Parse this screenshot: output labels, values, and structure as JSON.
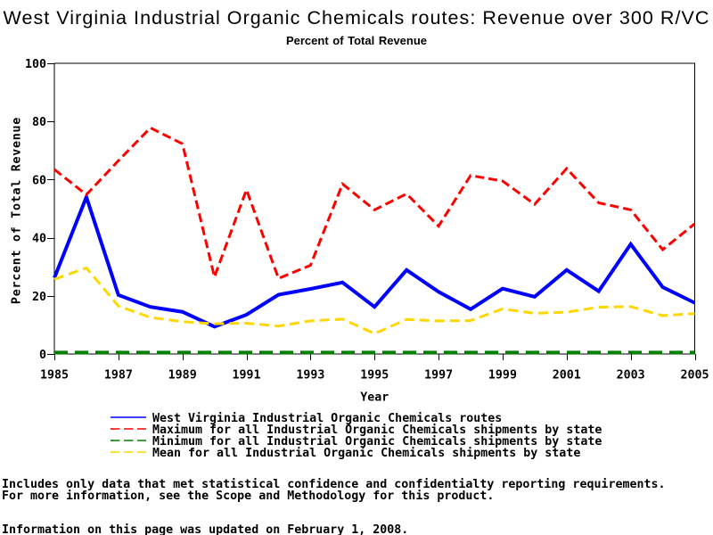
{
  "chart_data": {
    "type": "line",
    "title": "West Virginia Industrial Organic Chemicals routes: Revenue over 300 R/VC",
    "subtitle": "Percent of Total Revenue",
    "xlabel": "Year",
    "ylabel": "Percent of Total Revenue",
    "xlim": [
      1985,
      2005
    ],
    "ylim": [
      0,
      100
    ],
    "x_tick_labels": [
      1985,
      1987,
      1989,
      1991,
      1993,
      1995,
      1997,
      1999,
      2001,
      2003,
      2005
    ],
    "y_tick_labels": [
      0,
      20,
      40,
      60,
      80,
      100
    ],
    "grid": false,
    "legend_position": "bottom",
    "x": [
      1985,
      1986,
      1987,
      1988,
      1989,
      1990,
      1991,
      1992,
      1993,
      1994,
      1995,
      1996,
      1997,
      1998,
      1999,
      2000,
      2001,
      2002,
      2003,
      2004,
      2005
    ],
    "series": [
      {
        "name": "West Virginia Industrial Organic Chemicals routes",
        "color": "#0000ff",
        "line_style": "solid",
        "line_width": 4,
        "values": [
          26.2,
          54.0,
          20.3,
          16.2,
          14.5,
          9.4,
          13.5,
          20.4,
          22.4,
          24.6,
          16.2,
          28.9,
          21.4,
          15.4,
          22.5,
          19.7,
          28.9,
          21.6,
          37.8,
          23.0,
          17.6
        ]
      },
      {
        "name": "Maximum for all Industrial Organic Chemicals shipments by state",
        "color": "#ff0000",
        "line_style": "dashed",
        "line_width": 3,
        "values": [
          63.5,
          54.8,
          66.5,
          77.8,
          72.3,
          26.5,
          56.5,
          26.0,
          30.5,
          58.5,
          49.6,
          55.1,
          44.0,
          61.4,
          59.5,
          51.5,
          63.8,
          52.0,
          49.6,
          35.9,
          44.8
        ]
      },
      {
        "name": "Minimum for all Industrial Organic Chemicals shipments by state",
        "color": "#008000",
        "line_style": "dashed",
        "line_width": 4,
        "values": [
          0.5,
          0.5,
          0.5,
          0.5,
          0.5,
          0.5,
          0.5,
          0.5,
          0.5,
          0.5,
          0.5,
          0.5,
          0.5,
          0.5,
          0.5,
          0.5,
          0.5,
          0.5,
          0.5,
          0.5,
          0.5
        ]
      },
      {
        "name": "Mean for all Industrial Organic Chemicals shipments by state",
        "color": "#ffd700",
        "line_style": "dashed",
        "line_width": 3,
        "values": [
          25.7,
          29.6,
          16.5,
          12.6,
          11.1,
          10.4,
          10.6,
          9.6,
          11.4,
          12.0,
          7.0,
          11.9,
          11.4,
          11.5,
          15.5,
          14.0,
          14.4,
          16.1,
          16.3,
          13.2,
          13.9
        ]
      }
    ]
  },
  "footnotes": [
    "Includes only data that met statistical confidence and confidentialty reporting requirements.",
    "For more information, see the Scope and Methodology for this product.",
    "Information on this page was updated on February 1, 2008."
  ],
  "colors": {
    "axis": "#000000",
    "text": "#000000",
    "background": "#ffffff"
  }
}
